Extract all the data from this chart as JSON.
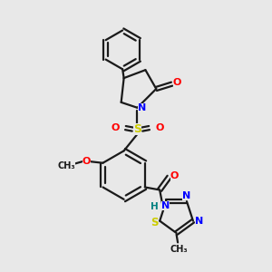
{
  "background_color": "#e8e8e8",
  "line_color": "#1a1a1a",
  "bond_width": 1.6,
  "colors": {
    "N": "#0000ff",
    "O": "#ff0000",
    "S": "#cccc00",
    "H": "#008080",
    "C": "#1a1a1a"
  },
  "fig_width": 3.0,
  "fig_height": 3.0,
  "dpi": 100
}
